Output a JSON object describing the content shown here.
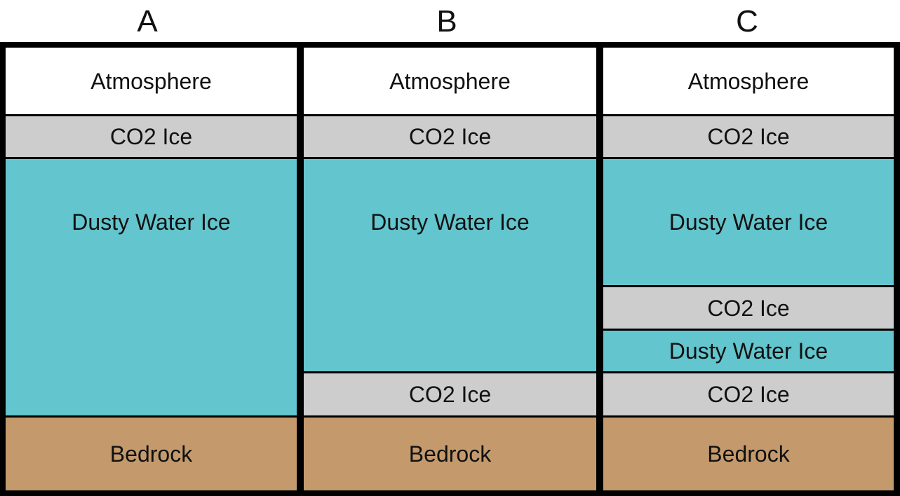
{
  "columns": [
    {
      "label": "A",
      "layers": [
        {
          "type": "atmosphere",
          "label": "Atmosphere"
        },
        {
          "type": "co2",
          "label": "CO2 Ice"
        },
        {
          "type": "water",
          "label": "Dusty Water Ice"
        },
        {
          "type": "bedrock",
          "label": "Bedrock"
        }
      ]
    },
    {
      "label": "B",
      "layers": [
        {
          "type": "atmosphere",
          "label": "Atmosphere"
        },
        {
          "type": "co2",
          "label": "CO2 Ice"
        },
        {
          "type": "water",
          "label": "Dusty Water Ice"
        },
        {
          "type": "co2",
          "label": "CO2 Ice"
        },
        {
          "type": "bedrock",
          "label": "Bedrock"
        }
      ]
    },
    {
      "label": "C",
      "layers": [
        {
          "type": "atmosphere",
          "label": "Atmosphere"
        },
        {
          "type": "co2",
          "label": "CO2 Ice"
        },
        {
          "type": "water",
          "label": "Dusty Water Ice"
        },
        {
          "type": "co2",
          "label": "CO2 Ice"
        },
        {
          "type": "water",
          "label": "Dusty Water Ice"
        },
        {
          "type": "co2",
          "label": "CO2 Ice"
        },
        {
          "type": "bedrock",
          "label": "Bedrock"
        }
      ]
    }
  ],
  "colors": {
    "atmosphere": "#ffffff",
    "co2_ice": "#cdcdcd",
    "dusty_water_ice": "#63c5cd",
    "bedrock": "#c49a6c",
    "border": "#000000"
  }
}
